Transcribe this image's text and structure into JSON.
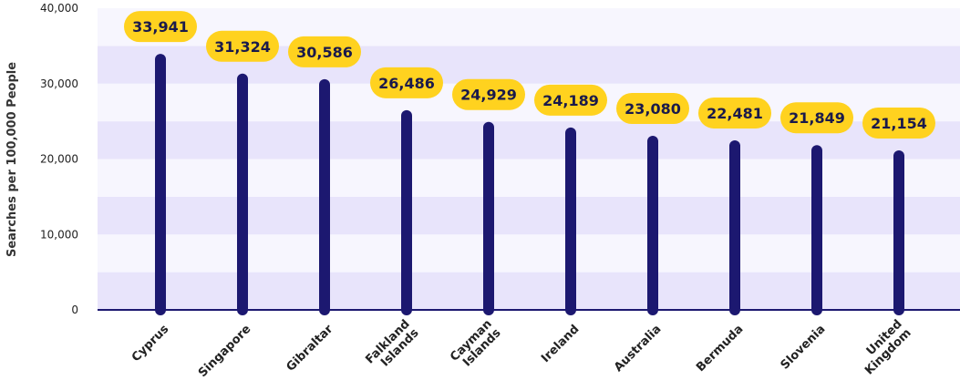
{
  "chart_data": {
    "type": "bar",
    "title": "",
    "xlabel": "",
    "ylabel": "Searches per 100,000 People",
    "ylim": [
      0,
      40000
    ],
    "yticks": [
      0,
      10000,
      20000,
      30000,
      40000
    ],
    "ytick_labels": [
      "0",
      "10,000",
      "20,000",
      "30,000",
      "40,000"
    ],
    "grid": "alternating horizontal bands",
    "categories": [
      [
        "Cyprus"
      ],
      [
        "Singapore"
      ],
      [
        "Gibraltar"
      ],
      [
        "Falkland",
        "Islands"
      ],
      [
        "Cayman",
        "Islands"
      ],
      [
        "Ireland"
      ],
      [
        "Australia"
      ],
      [
        "Bermuda"
      ],
      [
        "Slovenia"
      ],
      [
        "United",
        "Kingdom"
      ]
    ],
    "values": [
      33941,
      31324,
      30586,
      26486,
      24929,
      24189,
      23080,
      22481,
      21849,
      21154
    ],
    "value_labels": [
      "33,941",
      "31,324",
      "30,586",
      "26,486",
      "24,929",
      "24,189",
      "23,080",
      "22,481",
      "21,849",
      "21,154"
    ],
    "colors": {
      "bar": "#1c1870",
      "label_bg": "#ffd21f",
      "label_text": "#1a1a4b",
      "band_dark": "#e8e4fb",
      "band_light": "#f7f6fe",
      "axis": "#1c1870"
    }
  }
}
